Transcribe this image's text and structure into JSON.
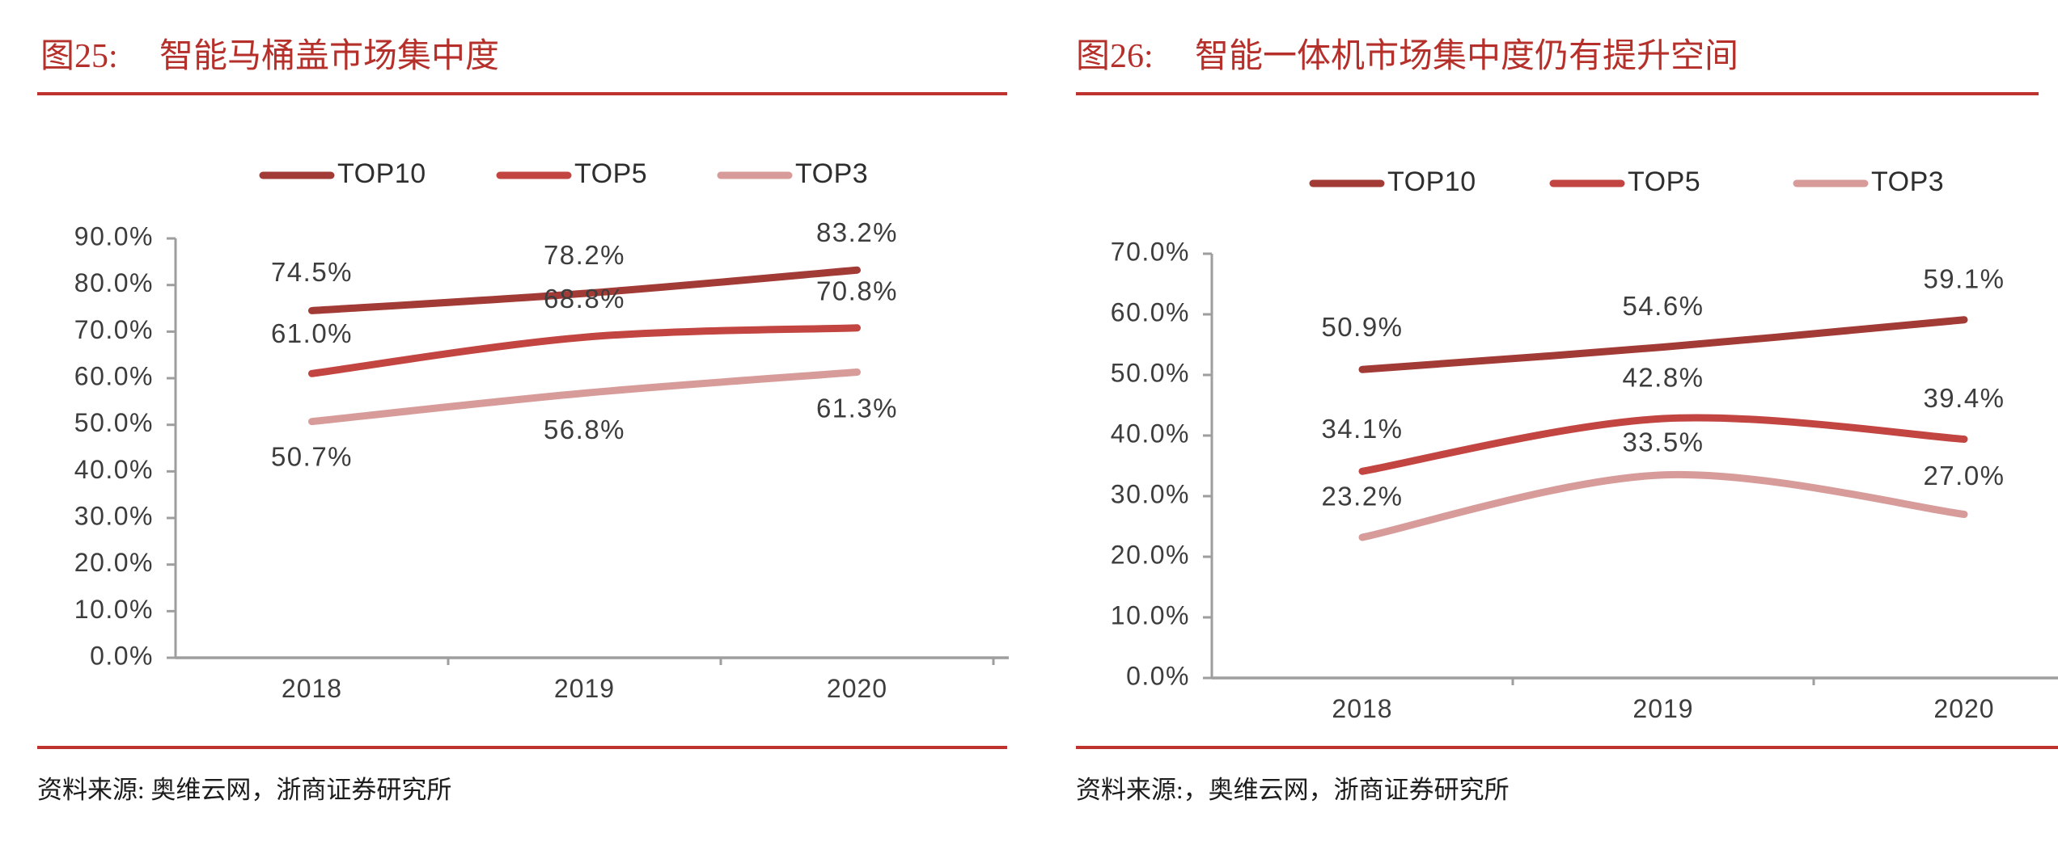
{
  "style": {
    "title_color": "#b5302a",
    "rule_color": "#bf332f",
    "axis_color": "#9e9e9e",
    "label_color": "#3d3d3d",
    "background": "#ffffff"
  },
  "figures": [
    {
      "label": "图25:",
      "title": "智能马桶盖市场集中度",
      "source": "资料来源: 奥维云网，浙商证券研究所",
      "chart_data": {
        "type": "line",
        "categories": [
          "2018",
          "2019",
          "2020"
        ],
        "series": [
          {
            "name": "TOP10",
            "color": "#a23a36",
            "values": [
              74.5,
              78.2,
              83.2
            ],
            "labels": [
              "74.5%",
              "78.2%",
              "83.2%"
            ],
            "label_dy": [
              -45,
              -45,
              -44
            ]
          },
          {
            "name": "TOP5",
            "color": "#c24541",
            "values": [
              61.0,
              68.8,
              70.8
            ],
            "labels": [
              "61.0%",
              "68.8%",
              "70.8%"
            ],
            "label_dy": [
              -47,
              -45,
              -43
            ]
          },
          {
            "name": "TOP3",
            "color": "#d79c9a",
            "values": [
              50.7,
              56.8,
              61.3
            ],
            "labels": [
              "50.7%",
              "56.8%",
              "61.3%"
            ],
            "label_dy": [
              46,
              48,
              47
            ]
          }
        ],
        "ylim": [
          0,
          90
        ],
        "ytick_step": 10,
        "ytick_labels": [
          "0.0%",
          "10.0%",
          "20.0%",
          "30.0%",
          "40.0%",
          "50.0%",
          "60.0%",
          "70.0%",
          "80.0%",
          "90.0%"
        ],
        "grid": false,
        "legend_position": "top",
        "legend": [
          "TOP10",
          "TOP5",
          "TOP3"
        ]
      }
    },
    {
      "label": "图26:",
      "title": "智能一体机市场集中度仍有提升空间",
      "source": "资料来源:，奥维云网，浙商证券研究所",
      "chart_data": {
        "type": "line",
        "categories": [
          "2018",
          "2019",
          "2020"
        ],
        "series": [
          {
            "name": "TOP10",
            "color": "#a23a36",
            "values": [
              50.9,
              54.6,
              59.1
            ],
            "labels": [
              "50.9%",
              "54.6%",
              "59.1%"
            ],
            "label_dy": [
              -50,
              -48,
              -48
            ]
          },
          {
            "name": "TOP5",
            "color": "#c24541",
            "values": [
              34.1,
              42.8,
              39.4
            ],
            "labels": [
              "34.1%",
              "42.8%",
              "39.4%"
            ],
            "label_dy": [
              -50,
              -48,
              -48
            ]
          },
          {
            "name": "TOP3",
            "color": "#d79c9a",
            "values": [
              23.2,
              33.5,
              27.0
            ],
            "labels": [
              "23.2%",
              "33.5%",
              "27.0%"
            ],
            "label_dy": [
              -48,
              -38,
              -45
            ]
          }
        ],
        "ylim": [
          0,
          70
        ],
        "ytick_step": 10,
        "ytick_labels": [
          "0.0%",
          "10.0%",
          "20.0%",
          "30.0%",
          "40.0%",
          "50.0%",
          "60.0%",
          "70.0%"
        ],
        "grid": false,
        "legend_position": "top",
        "legend": [
          "TOP10",
          "TOP5",
          "TOP3"
        ]
      }
    }
  ]
}
